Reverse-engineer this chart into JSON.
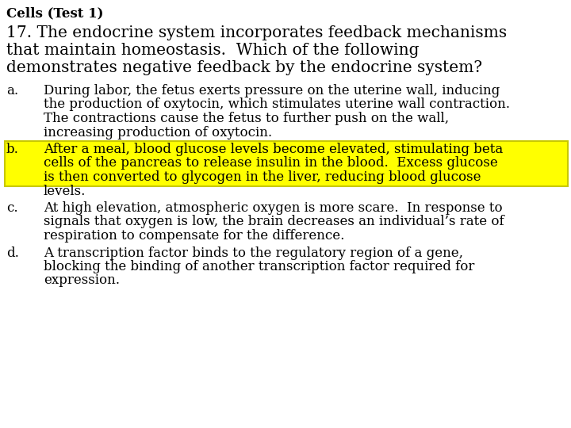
{
  "background_color": "#ffffff",
  "title": "Cells (Test 1)",
  "question_line1": "17. The endocrine system incorporates feedback mechanisms",
  "question_line2": "that maintain homeostasis.  Which of the following",
  "question_line3": "demonstrates negative feedback by the endocrine system?",
  "option_a_lines": [
    "During labor, the fetus exerts pressure on the uterine wall, inducing",
    "the production of oxytocin, which stimulates uterine wall contraction.",
    "The contractions cause the fetus to further push on the wall,",
    "increasing production of oxytocin."
  ],
  "option_b_lines": [
    "After a meal, blood glucose levels become elevated, stimulating beta",
    "cells of the pancreas to release insulin in the blood.  Excess glucose",
    "is then converted to glycogen in the liver, reducing blood glucose",
    "levels."
  ],
  "option_b_highlight_lines": 3,
  "option_c_lines": [
    "At high elevation, atmospheric oxygen is more scare.  In response to",
    "signals that oxygen is low, the brain decreases an individual’s rate of",
    "respiration to compensate for the difference."
  ],
  "option_d_lines": [
    "A transcription factor binds to the regulatory region of a gene,",
    "blocking the binding of another transcription factor required for",
    "expression."
  ],
  "highlight_color": "#ffff00",
  "highlight_border_color": "#c8c800",
  "text_color": "#000000",
  "title_fontsize": 12,
  "question_fontsize": 14.5,
  "option_fontsize": 12,
  "font_family": "DejaVu Serif"
}
